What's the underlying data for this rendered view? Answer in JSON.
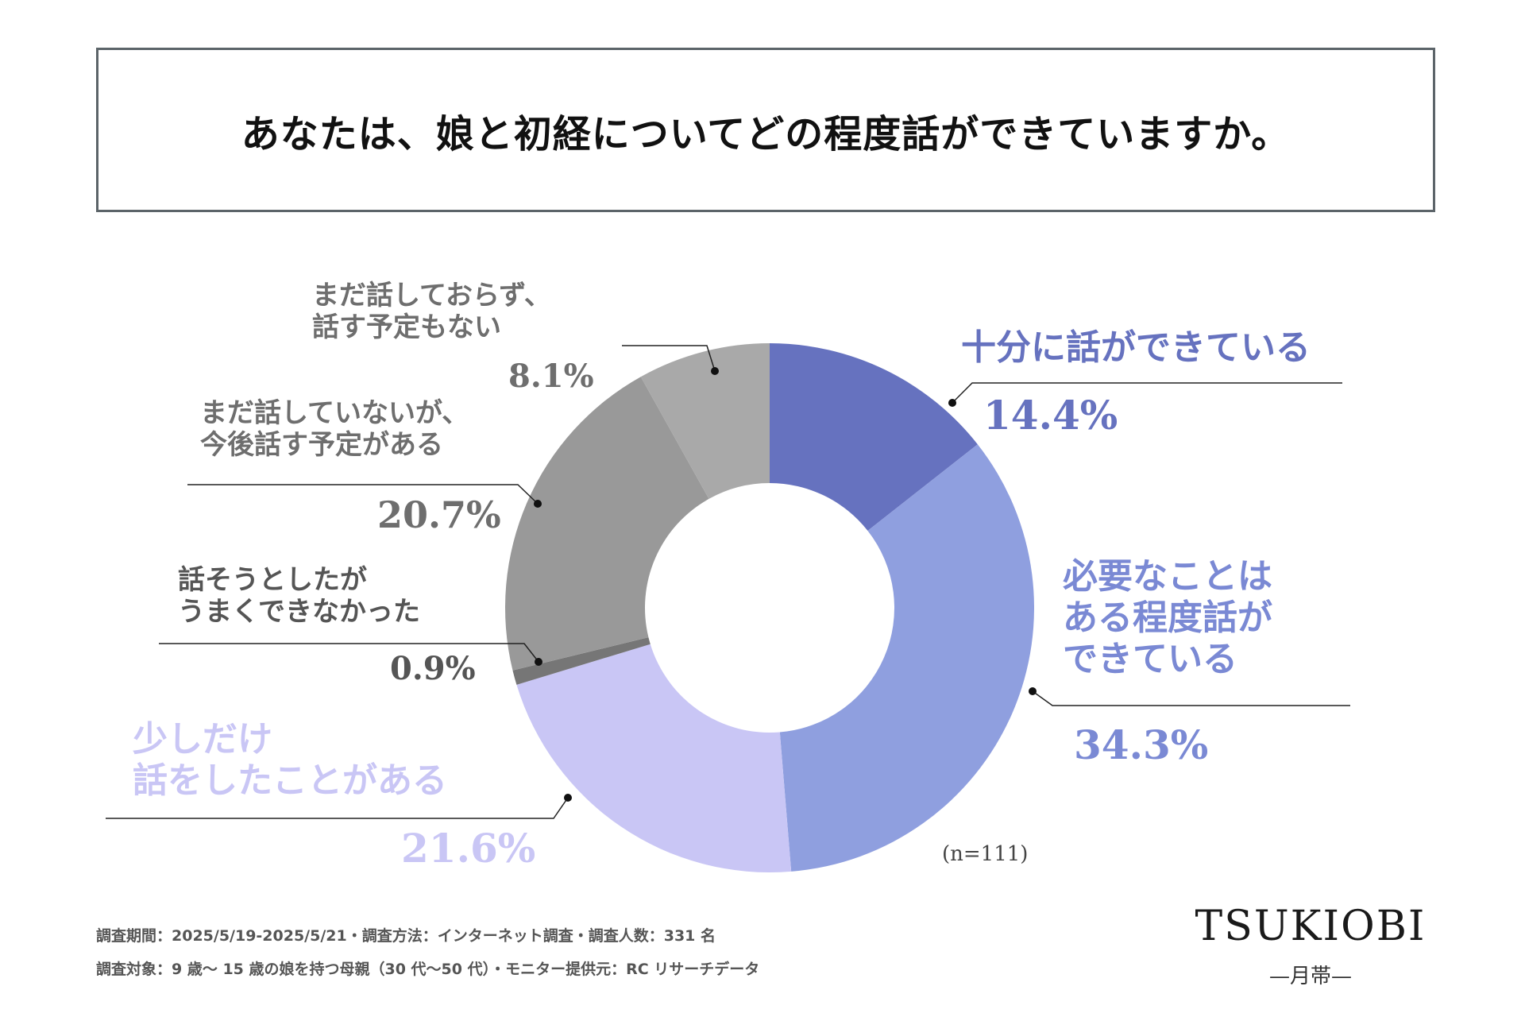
{
  "title": "あなたは、娘と初経についてどの程度話ができていますか。",
  "chart_data": {
    "type": "pie",
    "donut": true,
    "title": "あなたは、娘と初経についてどの程度話ができていますか。",
    "n_label": "(n=111)",
    "slices": [
      {
        "label_lines": [
          "十分に話ができている"
        ],
        "value": 14.4,
        "value_text": "14.4%",
        "color": "#6672BF"
      },
      {
        "label_lines": [
          "必要なことは",
          "ある程度話が",
          "できている"
        ],
        "value": 34.3,
        "value_text": "34.3%",
        "color": "#8F9FDF"
      },
      {
        "label_lines": [
          "少しだけ",
          "話をしたことがある"
        ],
        "value": 21.6,
        "value_text": "21.6%",
        "color": "#C9C6F5"
      },
      {
        "label_lines": [
          "話そうとしたが",
          "うまくできなかった"
        ],
        "value": 0.9,
        "value_text": "0.9%",
        "color": "#767676"
      },
      {
        "label_lines": [
          "まだ話していないが、",
          "今後話す予定がある"
        ],
        "value": 20.7,
        "value_text": "20.7%",
        "color": "#999999"
      },
      {
        "label_lines": [
          "まだ話しておらず、",
          "話す予定もない"
        ],
        "value": 8.1,
        "value_text": "8.1%",
        "color": "#A9A9A9"
      }
    ],
    "label_colors": [
      "#6672BF",
      "#7A89D4",
      "#C9C6F5",
      "#555555",
      "#6e6e6e",
      "#6e6e6e"
    ]
  },
  "footer": {
    "line1": "調査期間：2025/5/19-2025/5/21・調査方法：インターネット調査・調査人数：331 名",
    "line2": "調査対象：9 歳～ 15 歳の娘を持つ母親（30 代～50 代）・モニター提供元：RC リサーチデータ"
  },
  "brand": {
    "name": "TSUKIOBI",
    "sub": "—月帯—"
  }
}
